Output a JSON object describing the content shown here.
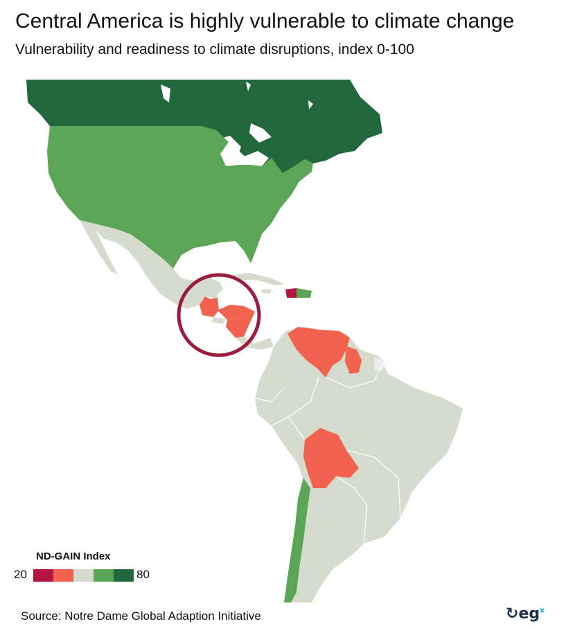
{
  "title": "Central America is highly vulnerable to climate change",
  "subtitle": "Vulnerability and readiness to climate disruptions, index 0-100",
  "legend": {
    "title": "ND-GAIN Index",
    "min": "20",
    "max": "80",
    "colors": [
      "#b3163e",
      "#f2634f",
      "#d5dccd",
      "#5aa556",
      "#21683d"
    ]
  },
  "source": "Source: Notre Dame Global Adaption Initiative",
  "logo": {
    "text": "eg",
    "superscript": "x"
  },
  "map_colors": {
    "very_high_readiness": "#21683d",
    "high_readiness": "#5aa556",
    "neutral": "#d5dccd",
    "vulnerable": "#f2634f",
    "very_vulnerable": "#b3163e",
    "highlight_ring": "#9a1d3b"
  },
  "regions": [
    {
      "name": "Canada",
      "category": "very_high_readiness"
    },
    {
      "name": "United States",
      "category": "high_readiness"
    },
    {
      "name": "Chile",
      "category": "high_readiness"
    },
    {
      "name": "Mexico",
      "category": "neutral"
    },
    {
      "name": "Guatemala",
      "category": "vulnerable"
    },
    {
      "name": "Honduras",
      "category": "vulnerable"
    },
    {
      "name": "Nicaragua",
      "category": "vulnerable"
    },
    {
      "name": "Venezuela",
      "category": "vulnerable"
    },
    {
      "name": "Guyana",
      "category": "vulnerable"
    },
    {
      "name": "Bolivia",
      "category": "vulnerable"
    },
    {
      "name": "Haiti",
      "category": "very_vulnerable"
    },
    {
      "name": "Brazil",
      "category": "neutral"
    },
    {
      "name": "Argentina",
      "category": "neutral"
    }
  ]
}
